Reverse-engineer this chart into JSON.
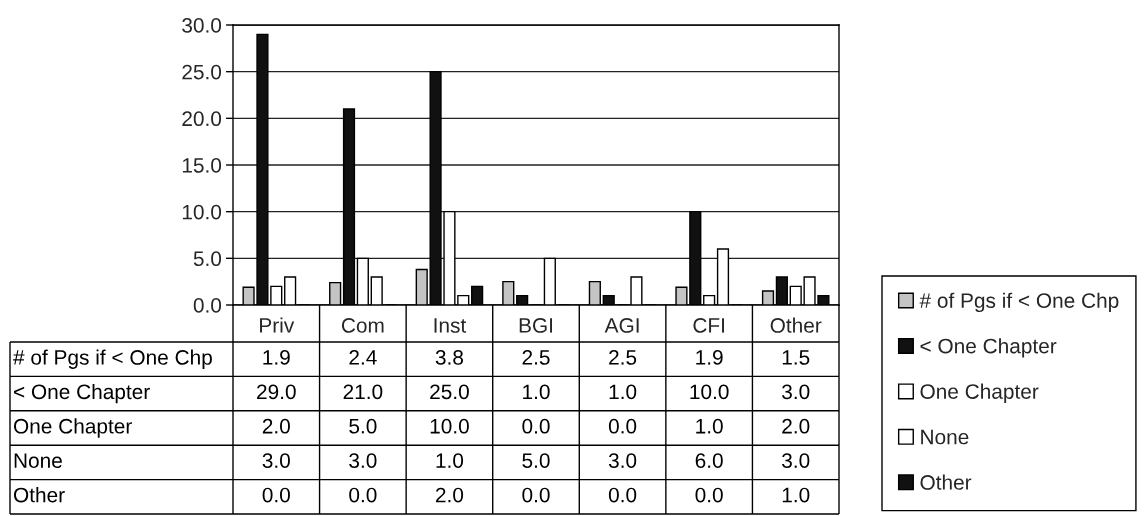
{
  "chart_data": {
    "type": "bar",
    "categories": [
      "Priv",
      "Com",
      "Inst",
      "BGI",
      "AGI",
      "CFI",
      "Other"
    ],
    "series": [
      {
        "name": "# of Pgs if < One Chp",
        "color": "#c4c4c4",
        "values": [
          1.9,
          2.4,
          3.8,
          2.5,
          2.5,
          1.9,
          1.5
        ],
        "value_labels": [
          "1.9",
          "2.4",
          "3.8",
          "2.5",
          "2.5",
          "1.9",
          "1.5"
        ]
      },
      {
        "name": "< One Chapter",
        "color": "#111111",
        "values": [
          29.0,
          21.0,
          25.0,
          1.0,
          1.0,
          10.0,
          3.0
        ],
        "value_labels": [
          "29.0",
          "21.0",
          "25.0",
          "1.0",
          "1.0",
          "10.0",
          "3.0"
        ]
      },
      {
        "name": "One Chapter",
        "color": "#ffffff",
        "values": [
          2.0,
          5.0,
          10.0,
          0.0,
          0.0,
          1.0,
          2.0
        ],
        "value_labels": [
          "2.0",
          "5.0",
          "10.0",
          "0.0",
          "0.0",
          "1.0",
          "2.0"
        ]
      },
      {
        "name": "None",
        "color": "#ffffff",
        "values": [
          3.0,
          3.0,
          1.0,
          5.0,
          3.0,
          6.0,
          3.0
        ],
        "value_labels": [
          "3.0",
          "3.0",
          "1.0",
          "5.0",
          "3.0",
          "6.0",
          "3.0"
        ]
      },
      {
        "name": "Other",
        "color": "#111111",
        "values": [
          0.0,
          0.0,
          2.0,
          0.0,
          0.0,
          0.0,
          1.0
        ],
        "value_labels": [
          "0.0",
          "0.0",
          "2.0",
          "0.0",
          "0.0",
          "0.0",
          "1.0"
        ]
      }
    ],
    "ylim": [
      0,
      30
    ],
    "yticks": [
      {
        "value": 0,
        "label": "0.0"
      },
      {
        "value": 5,
        "label": "5.0"
      },
      {
        "value": 10,
        "label": "10.0"
      },
      {
        "value": 15,
        "label": "15.0"
      },
      {
        "value": 20,
        "label": "20.0"
      },
      {
        "value": 25,
        "label": "25.0"
      },
      {
        "value": 30,
        "label": "30.0"
      }
    ],
    "grid": "y",
    "legend": "right"
  }
}
